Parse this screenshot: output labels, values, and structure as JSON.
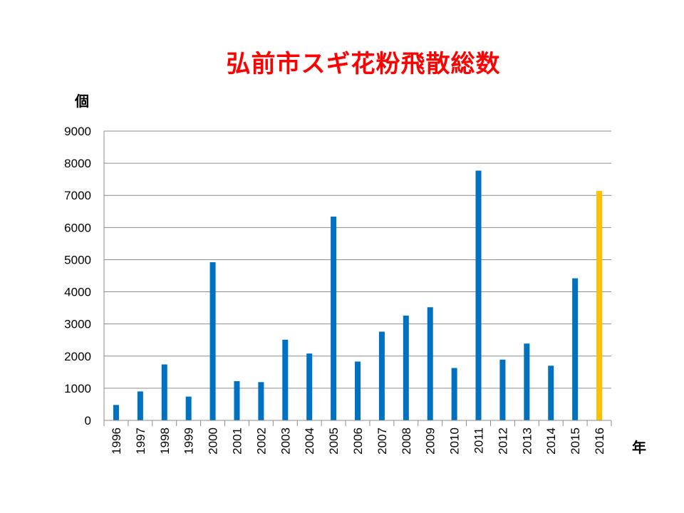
{
  "chart_data": {
    "type": "bar",
    "title": "弘前市スギ花粉飛散総数",
    "ylabel": "個",
    "xlabel": "年",
    "ylim": [
      0,
      9000
    ],
    "yticks": [
      0,
      1000,
      2000,
      3000,
      4000,
      5000,
      6000,
      7000,
      8000,
      9000
    ],
    "grid": true,
    "categories": [
      "1996",
      "1997",
      "1998",
      "1999",
      "2000",
      "2001",
      "2002",
      "2003",
      "2004",
      "2005",
      "2006",
      "2007",
      "2008",
      "2009",
      "2010",
      "2011",
      "2012",
      "2013",
      "2014",
      "2015",
      "2016"
    ],
    "values": [
      480,
      900,
      1740,
      740,
      4920,
      1220,
      1190,
      2510,
      2080,
      6340,
      1830,
      2760,
      3260,
      3520,
      1630,
      7770,
      1890,
      2390,
      1700,
      4420,
      7140
    ],
    "bar_color": "#0070c0",
    "highlight_color": "#ffc000",
    "highlight_category": "2016"
  }
}
